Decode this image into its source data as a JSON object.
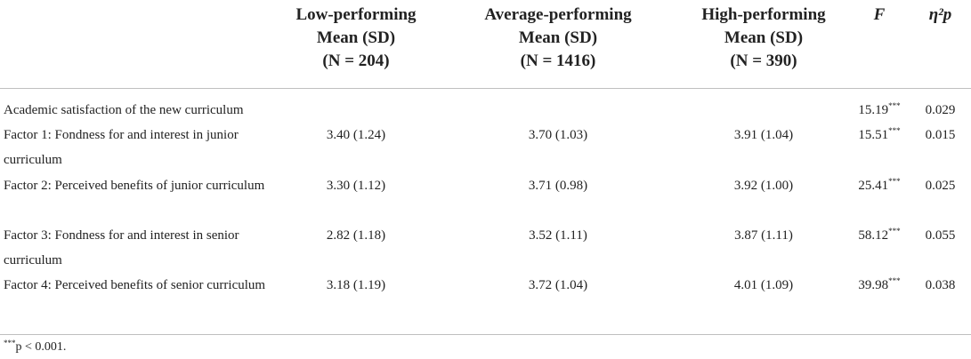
{
  "header": {
    "col1": [
      "Low-performing",
      "Mean (SD)",
      "(N = 204)"
    ],
    "col2": [
      "Average-performing",
      "Mean (SD)",
      "(N = 1416)"
    ],
    "col3": [
      "High-performing",
      "Mean (SD)",
      "(N = 390)"
    ],
    "col4": "F",
    "col5": "η²p"
  },
  "rows": [
    {
      "label": "Academic satisfaction of the new curriculum",
      "low": "",
      "avg": "",
      "high": "",
      "F": "15.19",
      "F_sig": "***",
      "eta": "0.029"
    },
    {
      "label": "Factor 1: Fondness for and interest in junior curriculum",
      "low": "3.40 (1.24)",
      "avg": "3.70 (1.03)",
      "high": "3.91 (1.04)",
      "F": "15.51",
      "F_sig": "***",
      "eta": "0.015"
    },
    {
      "label": "Factor 2: Perceived benefits of junior curriculum",
      "low": "3.30 (1.12)",
      "avg": "3.71 (0.98)",
      "high": "3.92 (1.00)",
      "F": "25.41",
      "F_sig": "***",
      "eta": "0.025"
    },
    {
      "label": "Factor 3: Fondness for and interest in senior curriculum",
      "low": "2.82 (1.18)",
      "avg": "3.52 (1.11)",
      "high": "3.87 (1.11)",
      "F": "58.12",
      "F_sig": "***",
      "eta": "0.055"
    },
    {
      "label": "Factor 4: Perceived benefits of senior curriculum",
      "low": "3.18 (1.19)",
      "avg": "3.72 (1.04)",
      "high": "4.01 (1.09)",
      "F": "39.98",
      "F_sig": "***",
      "eta": "0.038"
    }
  ],
  "footnote": {
    "sig": "***",
    "text": "p < 0.001."
  }
}
